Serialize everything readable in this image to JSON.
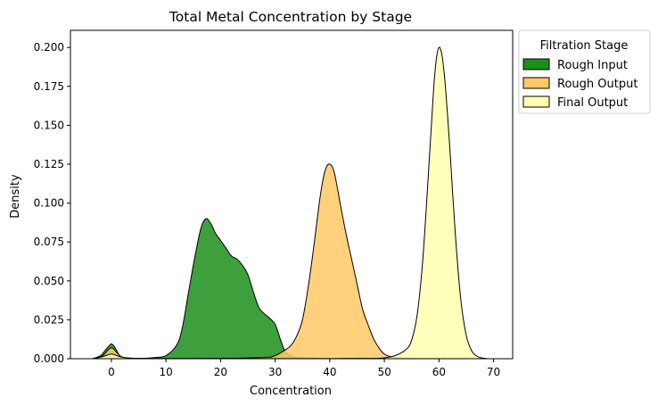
{
  "chart_data": {
    "type": "area",
    "title": "Total Metal Concentration by Stage",
    "xlabel": "Concentration",
    "ylabel": "Density",
    "xlim": [
      -7.5,
      73.5
    ],
    "ylim": [
      0,
      0.211
    ],
    "xticks": [
      0,
      10,
      20,
      30,
      40,
      50,
      60,
      70
    ],
    "yticks": [
      "0.000",
      "0.025",
      "0.050",
      "0.075",
      "0.100",
      "0.125",
      "0.150",
      "0.175",
      "0.200"
    ],
    "grid": false,
    "legend": {
      "title": "Filtration Stage",
      "placement": "outside-top-right"
    },
    "series": [
      {
        "name": "Rough Input",
        "color": "#1b8f1b",
        "x": [
          -3.5,
          -2,
          -1,
          -0.5,
          0,
          0.5,
          1,
          1.5,
          2.5,
          4,
          6,
          8,
          10,
          12,
          13,
          14,
          15,
          16,
          16.5,
          17,
          17.5,
          18,
          18.5,
          19,
          20,
          21,
          22,
          23,
          24,
          25,
          26,
          27,
          28,
          29,
          30,
          31,
          31.5,
          32,
          33,
          34,
          36,
          38,
          40,
          45,
          50,
          55,
          60,
          65,
          69
        ],
        "y": [
          0,
          0.002,
          0.006,
          0.008,
          0.0095,
          0.008,
          0.005,
          0.002,
          0.0005,
          0.0002,
          0.0003,
          0.0008,
          0.002,
          0.009,
          0.02,
          0.04,
          0.06,
          0.078,
          0.085,
          0.089,
          0.09,
          0.088,
          0.085,
          0.081,
          0.076,
          0.071,
          0.066,
          0.064,
          0.06,
          0.054,
          0.043,
          0.033,
          0.029,
          0.026,
          0.022,
          0.012,
          0.007,
          0.004,
          0.0015,
          0.0008,
          0.0005,
          0.0003,
          0.0002,
          0.0002,
          0.0002,
          0.0002,
          0.0001,
          0.0001,
          0
        ]
      },
      {
        "name": "Rough Output",
        "color": "#ffc966",
        "x": [
          -3.5,
          -2,
          -1,
          -0.5,
          0,
          0.5,
          1,
          2,
          4,
          10,
          20,
          28,
          30,
          32,
          33,
          34,
          35,
          36,
          37,
          38,
          38.5,
          39,
          39.5,
          40,
          40.5,
          41,
          42,
          43,
          44,
          45,
          46,
          47,
          48,
          49,
          50,
          51,
          52,
          54,
          60,
          65,
          69
        ],
        "y": [
          0,
          0.001,
          0.004,
          0.006,
          0.007,
          0.006,
          0.004,
          0.001,
          0.0002,
          0.0001,
          0.0002,
          0.0008,
          0.002,
          0.006,
          0.009,
          0.015,
          0.025,
          0.045,
          0.07,
          0.098,
          0.11,
          0.119,
          0.124,
          0.125,
          0.123,
          0.117,
          0.098,
          0.08,
          0.064,
          0.048,
          0.032,
          0.022,
          0.013,
          0.007,
          0.003,
          0.0015,
          0.0008,
          0.0003,
          0.0001,
          0.0001,
          0
        ]
      },
      {
        "name": "Final Output",
        "color": "#ffffb0",
        "x": [
          -3.5,
          -2,
          -1,
          0,
          1,
          2,
          4,
          10,
          20,
          30,
          40,
          48,
          50,
          52,
          54,
          55,
          56,
          57,
          58,
          59,
          59.5,
          60,
          60.5,
          61,
          61.5,
          62,
          63,
          64,
          65,
          66,
          67,
          68,
          69
        ],
        "y": [
          0,
          0.001,
          0.002,
          0.003,
          0.002,
          0.001,
          0.0003,
          0.0001,
          0.0001,
          0.0001,
          0.0001,
          0.0002,
          0.0006,
          0.002,
          0.006,
          0.012,
          0.028,
          0.062,
          0.115,
          0.172,
          0.192,
          0.2,
          0.196,
          0.182,
          0.16,
          0.135,
          0.08,
          0.038,
          0.015,
          0.005,
          0.0015,
          0.0004,
          0
        ]
      }
    ]
  }
}
